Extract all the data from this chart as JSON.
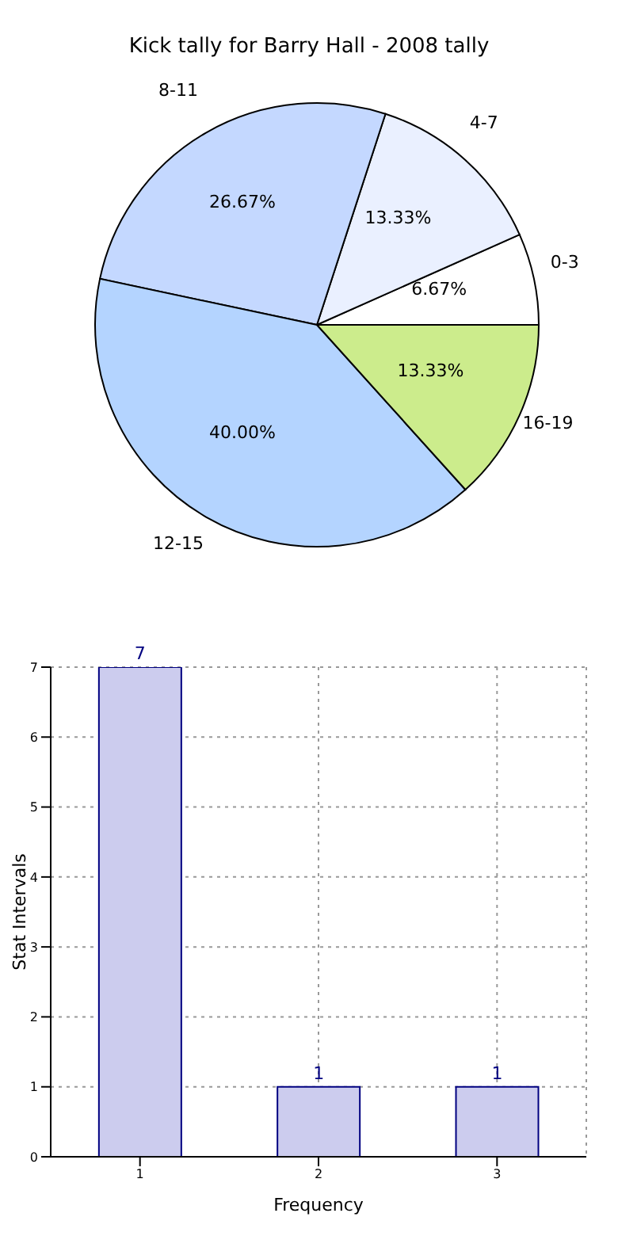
{
  "chart_data": [
    {
      "type": "pie",
      "title": "Kick tally for Barry Hall - 2008 tally",
      "categories": [
        "0-3",
        "4-7",
        "8-11",
        "12-15",
        "16-19"
      ],
      "values": [
        6.67,
        13.33,
        26.67,
        40,
        13.33
      ],
      "colors": [
        "#ffffff",
        "#eaf0ff",
        "#c4d8ff",
        "#b4d4ff",
        "#ccec8c"
      ],
      "value_labels": [
        "6.67%",
        "13.33%",
        "26.67%",
        "40.00%",
        "13.33%"
      ]
    },
    {
      "type": "bar",
      "categories": [
        "1",
        "2",
        "3"
      ],
      "values": [
        7,
        1,
        1
      ],
      "color": "#ccccee",
      "ylim": [
        0,
        7
      ],
      "yticks": [
        0,
        1,
        2,
        3,
        4,
        5,
        6,
        7
      ],
      "grid": true,
      "data_labels": true,
      "xlabel": "Frequency",
      "ylabel": "Stat Intervals"
    }
  ]
}
